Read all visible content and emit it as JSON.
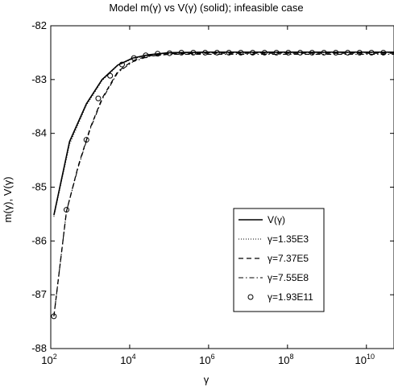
{
  "chart_data": {
    "type": "line",
    "title": "Model m(γ) vs V(γ) (solid); infeasible case",
    "xlabel": "γ",
    "ylabel": "m(γ), V(γ)",
    "xscale": "log",
    "xlim": [
      100,
      50000000000
    ],
    "ylim": [
      -88,
      -82
    ],
    "xticks": [
      {
        "value": 100,
        "base": "10",
        "exp": "2"
      },
      {
        "value": 10000,
        "base": "10",
        "exp": "4"
      },
      {
        "value": 1000000,
        "base": "10",
        "exp": "6"
      },
      {
        "value": 100000000,
        "base": "10",
        "exp": "8"
      },
      {
        "value": 10000000000,
        "base": "10",
        "exp": "10"
      }
    ],
    "yticks": [
      {
        "value": -82,
        "label": "-82"
      },
      {
        "value": -83,
        "label": "-83"
      },
      {
        "value": -84,
        "label": "-84"
      },
      {
        "value": -85,
        "label": "-85"
      },
      {
        "value": -86,
        "label": "-86"
      },
      {
        "value": -87,
        "label": "-87"
      },
      {
        "value": -88,
        "label": "-88"
      }
    ],
    "grid": false,
    "legend_position": "center-right",
    "series": [
      {
        "name": "V(γ)",
        "style": "solid",
        "x": [
          120,
          300,
          800,
          2000,
          5000,
          12000,
          30000,
          100000,
          1000000,
          50000000000
        ],
        "y": [
          -85.52,
          -84.15,
          -83.45,
          -83.0,
          -82.73,
          -82.6,
          -82.54,
          -82.5,
          -82.49,
          -82.49
        ]
      },
      {
        "name": "γ=1.35E3",
        "style": "dotted",
        "x": [
          120,
          300,
          800,
          2000,
          5000,
          12000,
          30000,
          100000,
          1000000,
          50000000000
        ],
        "y": [
          -85.55,
          -84.2,
          -83.48,
          -83.02,
          -82.74,
          -82.61,
          -82.55,
          -82.51,
          -82.5,
          -82.5
        ]
      },
      {
        "name": "γ=7.37E5",
        "style": "dashed",
        "x": [
          120,
          250,
          500,
          1000,
          2000,
          5000,
          12000,
          30000,
          100000,
          1000000,
          50000000000
        ],
        "y": [
          -87.4,
          -85.45,
          -84.6,
          -83.9,
          -83.35,
          -82.85,
          -82.65,
          -82.56,
          -82.52,
          -82.51,
          -82.51
        ]
      },
      {
        "name": "γ=7.55E8",
        "style": "dashdot",
        "x": [
          120,
          250,
          500,
          1000,
          2000,
          5000,
          12000,
          30000,
          100000,
          1000000,
          50000000000
        ],
        "y": [
          -87.4,
          -85.45,
          -84.62,
          -83.92,
          -83.37,
          -82.87,
          -82.67,
          -82.57,
          -82.53,
          -82.53,
          -82.53
        ]
      },
      {
        "name": "γ=1.93E11",
        "style": "markers-circle",
        "x": [
          120,
          250,
          800,
          1600,
          3200,
          6400,
          12800,
          25600,
          51200,
          102400,
          204800,
          409600,
          819200,
          1638400,
          3276800,
          6553600,
          13107200,
          26214400,
          52428800,
          104857600,
          209715200,
          419430400,
          838860800,
          1677721600,
          3355443200,
          6710886400,
          13421772800,
          26843545600
        ],
        "y": [
          -87.4,
          -85.42,
          -84.12,
          -83.35,
          -82.93,
          -82.72,
          -82.6,
          -82.55,
          -82.52,
          -82.51,
          -82.5,
          -82.5,
          -82.5,
          -82.5,
          -82.5,
          -82.5,
          -82.5,
          -82.5,
          -82.5,
          -82.5,
          -82.5,
          -82.5,
          -82.5,
          -82.5,
          -82.5,
          -82.5,
          -82.5,
          -82.5
        ]
      }
    ]
  }
}
